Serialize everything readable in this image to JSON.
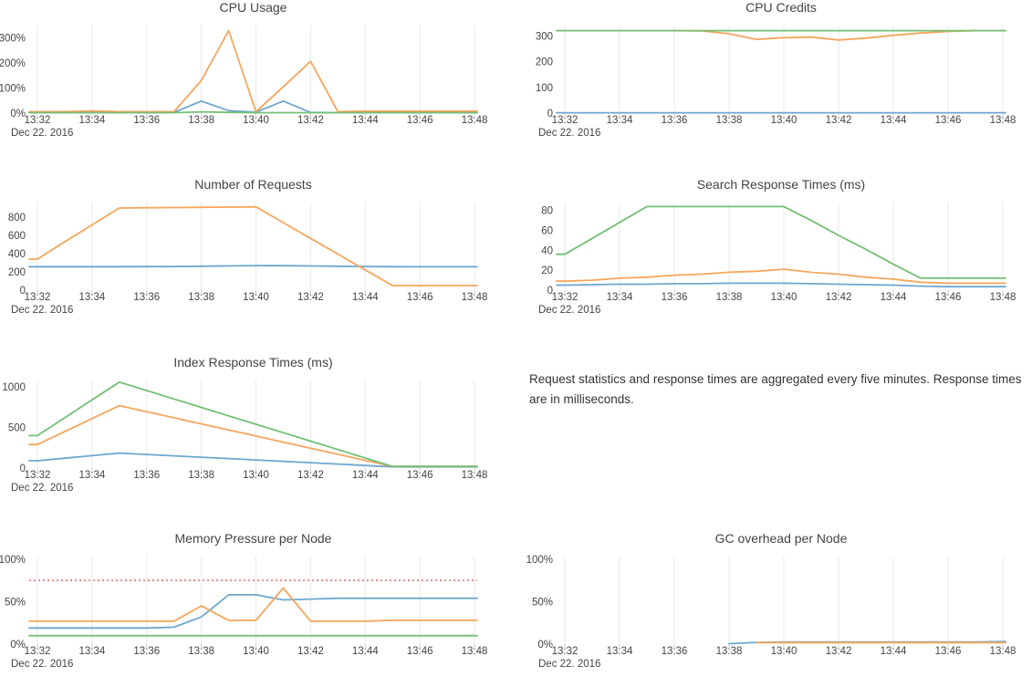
{
  "axis": {
    "x_tick_labels": [
      "13:32",
      "13:34",
      "13:36",
      "13:38",
      "13:40",
      "13:42",
      "13:44",
      "13:46",
      "13:48"
    ],
    "x_tick_minutes": [
      32,
      34,
      36,
      38,
      40,
      42,
      44,
      46,
      48
    ],
    "date_label": "Dec 22. 2016"
  },
  "colors": {
    "blue": "#6da6ce",
    "orange": "#f5a65b",
    "green": "#74bf74",
    "red": "#e88989",
    "grid": "#e8e8e8",
    "tick_mark": "#cccccc",
    "text": "#444444"
  },
  "note": {
    "text": "Request statistics and response times are aggregated every five minutes. Response times are in milliseconds."
  },
  "chart_data": [
    {
      "id": "cpu-usage",
      "title": "CPU Usage",
      "type": "line",
      "y_range": [
        0,
        350
      ],
      "y_ticks": [
        {
          "value": 0,
          "label": "0%"
        },
        {
          "value": 100,
          "label": "100%"
        },
        {
          "value": 200,
          "label": "200%"
        },
        {
          "value": 300,
          "label": "300%"
        }
      ],
      "series": [
        {
          "name": "series-blue",
          "color": "blue",
          "x": [
            32,
            33,
            34,
            35,
            36,
            37,
            38,
            39,
            40,
            41,
            42,
            43,
            44,
            45,
            46,
            47,
            48
          ],
          "y": [
            3,
            3,
            3,
            3,
            3,
            3,
            48,
            10,
            4,
            48,
            3,
            2,
            2,
            2,
            2,
            2,
            2
          ]
        },
        {
          "name": "series-orange",
          "color": "orange",
          "x": [
            32,
            33,
            34,
            35,
            36,
            37,
            38,
            39,
            40,
            41,
            42,
            43,
            44,
            45,
            46,
            47,
            48
          ],
          "y": [
            6,
            6,
            9,
            6,
            6,
            6,
            130,
            330,
            6,
            105,
            207,
            6,
            8,
            8,
            8,
            8,
            8
          ]
        },
        {
          "name": "series-green",
          "color": "green",
          "x": [
            32,
            33,
            34,
            35,
            36,
            37,
            38,
            39,
            40,
            41,
            42,
            43,
            44,
            45,
            46,
            47,
            48
          ],
          "y": [
            2,
            2,
            2,
            2,
            2,
            2,
            5,
            3,
            2,
            2,
            2,
            2,
            2,
            2,
            2,
            2,
            2
          ]
        }
      ]
    },
    {
      "id": "cpu-credits",
      "title": "CPU Credits",
      "type": "line",
      "y_range": [
        0,
        340
      ],
      "y_ticks": [
        {
          "value": 0,
          "label": "0"
        },
        {
          "value": 100,
          "label": "100"
        },
        {
          "value": 200,
          "label": "200"
        },
        {
          "value": 300,
          "label": "300"
        }
      ],
      "series": [
        {
          "name": "series-blue",
          "color": "blue",
          "x": [
            32,
            33,
            34,
            35,
            36,
            37,
            38,
            39,
            40,
            41,
            42,
            43,
            44,
            45,
            46,
            47,
            48
          ],
          "y": [
            1.5,
            1.5,
            1.5,
            1.5,
            1.5,
            1.5,
            1.5,
            1.5,
            1.5,
            1.5,
            1.5,
            1.5,
            1.5,
            1.5,
            1.5,
            1.5,
            1.5
          ]
        },
        {
          "name": "series-orange",
          "color": "orange",
          "x": [
            32,
            33,
            34,
            35,
            36,
            37,
            38,
            39,
            40,
            41,
            42,
            43,
            44,
            45,
            46,
            47,
            48
          ],
          "y": [
            320,
            320,
            320,
            320,
            320,
            319,
            308,
            286,
            293,
            295,
            284,
            291,
            302,
            311,
            317,
            320,
            320
          ]
        },
        {
          "name": "series-green",
          "color": "green",
          "x": [
            32,
            33,
            34,
            35,
            36,
            37,
            38,
            39,
            40,
            41,
            42,
            43,
            44,
            45,
            46,
            47,
            48
          ],
          "y": [
            320,
            320,
            320,
            320,
            320,
            320,
            320,
            320,
            320,
            320,
            320,
            320,
            320,
            320,
            320,
            320,
            320
          ]
        }
      ]
    },
    {
      "id": "number-of-requests",
      "title": "Number of Requests",
      "type": "line",
      "y_range": [
        0,
        960
      ],
      "y_ticks": [
        {
          "value": 0,
          "label": "0"
        },
        {
          "value": 200,
          "label": "200"
        },
        {
          "value": 400,
          "label": "400"
        },
        {
          "value": 600,
          "label": "600"
        },
        {
          "value": 800,
          "label": "800"
        }
      ],
      "series": [
        {
          "name": "series-blue",
          "color": "blue",
          "x": [
            32,
            33,
            34,
            35,
            36,
            37,
            38,
            39,
            40,
            41,
            42,
            43,
            44,
            45,
            46,
            47,
            48
          ],
          "y": [
            257,
            257,
            257,
            257,
            258,
            259,
            262,
            266,
            269,
            268,
            265,
            262,
            259,
            257,
            256,
            256,
            256
          ]
        },
        {
          "name": "series-orange",
          "color": "orange",
          "x": [
            32,
            33,
            34,
            35,
            36,
            37,
            38,
            39,
            40,
            41,
            42,
            43,
            44,
            45,
            46,
            47,
            48
          ],
          "y": [
            340,
            530,
            715,
            900,
            903,
            905,
            908,
            910,
            913,
            740,
            567,
            395,
            222,
            50,
            50,
            50,
            50
          ]
        }
      ]
    },
    {
      "id": "search-response-times",
      "title": "Search Response Times (ms)",
      "type": "line",
      "y_range": [
        0,
        88
      ],
      "y_ticks": [
        {
          "value": 0,
          "label": "0"
        },
        {
          "value": 20,
          "label": "20"
        },
        {
          "value": 40,
          "label": "40"
        },
        {
          "value": 60,
          "label": "60"
        },
        {
          "value": 80,
          "label": "80"
        }
      ],
      "series": [
        {
          "name": "series-blue",
          "color": "blue",
          "x": [
            32,
            33,
            34,
            35,
            36,
            37,
            38,
            39,
            40,
            41,
            42,
            43,
            44,
            45,
            46,
            47,
            48
          ],
          "y": [
            5,
            5.5,
            6,
            6,
            6.5,
            6.5,
            7,
            7,
            7,
            6.5,
            6,
            5.5,
            5,
            4,
            3.5,
            3.5,
            3.5
          ]
        },
        {
          "name": "series-orange",
          "color": "orange",
          "x": [
            32,
            33,
            34,
            35,
            36,
            37,
            38,
            39,
            40,
            41,
            42,
            43,
            44,
            45,
            46,
            47,
            48
          ],
          "y": [
            9,
            10,
            12,
            13,
            15,
            16,
            18,
            19,
            21,
            18,
            16,
            13,
            11,
            8,
            7,
            7,
            7
          ]
        },
        {
          "name": "series-green",
          "color": "green",
          "x": [
            32,
            33,
            34,
            35,
            36,
            37,
            38,
            39,
            40,
            41,
            42,
            43,
            44,
            45,
            46,
            47,
            48
          ],
          "y": [
            36,
            52,
            68,
            84,
            84,
            84,
            84,
            84,
            84,
            70,
            55,
            41,
            26,
            12,
            12,
            12,
            12
          ]
        }
      ]
    },
    {
      "id": "index-response-times",
      "title": "Index Response Times (ms)",
      "type": "line",
      "y_range": [
        0,
        1080
      ],
      "y_ticks": [
        {
          "value": 0,
          "label": "0"
        },
        {
          "value": 500,
          "label": "500"
        },
        {
          "value": 1000,
          "label": "1000"
        }
      ],
      "series": [
        {
          "name": "series-blue",
          "color": "blue",
          "x": [
            32,
            33,
            34,
            35,
            36,
            37,
            38,
            39,
            40,
            41,
            42,
            43,
            44,
            45,
            46,
            47,
            48
          ],
          "y": [
            90,
            122,
            153,
            185,
            168,
            151,
            134,
            117,
            100,
            83,
            66,
            49,
            32,
            15,
            15,
            15,
            15
          ]
        },
        {
          "name": "series-orange",
          "color": "orange",
          "x": [
            32,
            33,
            34,
            35,
            36,
            37,
            38,
            39,
            40,
            41,
            42,
            43,
            44,
            45,
            46,
            47,
            48
          ],
          "y": [
            290,
            450,
            610,
            770,
            695,
            620,
            545,
            470,
            395,
            320,
            245,
            170,
            95,
            20,
            20,
            20,
            20
          ]
        },
        {
          "name": "series-green",
          "color": "green",
          "x": [
            32,
            33,
            34,
            35,
            36,
            37,
            38,
            39,
            40,
            41,
            42,
            43,
            44,
            45,
            46,
            47,
            48
          ],
          "y": [
            400,
            620,
            840,
            1060,
            956,
            852,
            748,
            644,
            540,
            436,
            332,
            228,
            124,
            20,
            20,
            20,
            20
          ]
        }
      ]
    },
    {
      "id": "memory-pressure-per-node",
      "title": "Memory Pressure per Node",
      "type": "line",
      "y_range": [
        0,
        103
      ],
      "y_ticks": [
        {
          "value": 0,
          "label": "0%"
        },
        {
          "value": 50,
          "label": "50%"
        },
        {
          "value": 100,
          "label": "100%"
        }
      ],
      "threshold": {
        "value": 75,
        "color": "red",
        "style": "dotted"
      },
      "series": [
        {
          "name": "series-blue",
          "color": "blue",
          "x": [
            32,
            33,
            34,
            35,
            36,
            37,
            38,
            39,
            40,
            41,
            42,
            43,
            44,
            45,
            46,
            47,
            48
          ],
          "y": [
            19,
            19,
            19,
            19,
            19,
            20,
            32,
            58,
            58,
            52,
            53,
            54,
            54,
            54,
            54,
            54,
            54
          ]
        },
        {
          "name": "series-orange",
          "color": "orange",
          "x": [
            32,
            33,
            34,
            35,
            36,
            37,
            38,
            39,
            40,
            41,
            42,
            43,
            44,
            45,
            46,
            47,
            48
          ],
          "y": [
            27,
            27,
            27,
            27,
            27,
            27,
            45,
            28,
            28,
            66,
            27,
            27,
            27,
            28,
            28,
            28,
            28
          ]
        },
        {
          "name": "series-green",
          "color": "green",
          "x": [
            32,
            33,
            34,
            35,
            36,
            37,
            38,
            39,
            40,
            41,
            42,
            43,
            44,
            45,
            46,
            47,
            48
          ],
          "y": [
            10,
            10,
            10,
            10,
            10,
            10,
            10,
            10,
            10,
            10,
            10,
            10,
            10,
            10,
            10,
            10,
            10
          ]
        }
      ]
    },
    {
      "id": "gc-overhead-per-node",
      "title": "GC overhead per Node",
      "type": "line",
      "y_range": [
        0,
        103
      ],
      "y_ticks": [
        {
          "value": 0,
          "label": "0%"
        },
        {
          "value": 50,
          "label": "50%"
        },
        {
          "value": 100,
          "label": "100%"
        }
      ],
      "series": [
        {
          "name": "series-blue",
          "color": "blue",
          "x": [
            38,
            39,
            40,
            41,
            42,
            43,
            44,
            45,
            46,
            47,
            48
          ],
          "y": [
            0.5,
            2,
            2.5,
            2.5,
            2.5,
            2.5,
            2.5,
            2.5,
            2.5,
            2.5,
            3
          ]
        },
        {
          "name": "series-orange",
          "color": "orange",
          "x": [
            39,
            40,
            41,
            42,
            43,
            44,
            45,
            46,
            47,
            48
          ],
          "y": [
            1.8,
            1.8,
            1.8,
            1.8,
            1.8,
            1.8,
            1.8,
            1.8,
            1.8,
            1.8
          ]
        }
      ]
    }
  ]
}
